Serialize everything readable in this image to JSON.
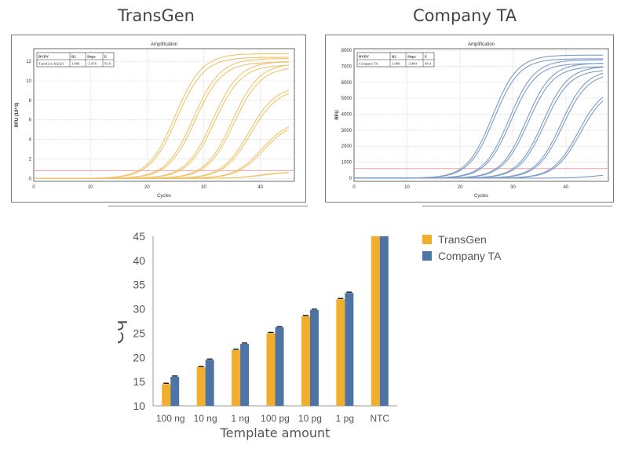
{
  "headings": {
    "left": "TransGen",
    "right": "Company TA"
  },
  "colors": {
    "transgen": "#F1AE2D",
    "company_ta": "#4E73A5",
    "transgen_curve": "#F0C46A",
    "company_curve": "#7C9CC6",
    "threshold": "#E7A3A3"
  },
  "chart_data": [
    {
      "type": "line",
      "title": "Amplification",
      "xlabel": "Cycles",
      "ylabel": "RFU (10^3)",
      "xlim": [
        0,
        46
      ],
      "ylim": [
        -0.3,
        13.3
      ],
      "xticks": [
        "0",
        "10",
        "20",
        "30",
        "40"
      ],
      "xtick_values": [
        0,
        10,
        20,
        30,
        40
      ],
      "yticks": [
        "0",
        "2",
        "4",
        "6",
        "8",
        "10",
        "12"
      ],
      "ytick_values": [
        0,
        2,
        4,
        6,
        8,
        10,
        12
      ],
      "grid": true,
      "threshold": 0.8,
      "table": {
        "headers": [
          "BVDV",
          "R2",
          "Slope",
          "E"
        ],
        "row": [
          "TransGen AQ321",
          "1.000",
          "-3.476",
          "93.9"
        ]
      },
      "curves": [
        {
          "cq": 18.5,
          "plateau": 12.8,
          "count": 2
        },
        {
          "cq": 21.8,
          "plateau": 12.3,
          "count": 2
        },
        {
          "cq": 25.3,
          "plateau": 12.0,
          "count": 2
        },
        {
          "cq": 28.8,
          "plateau": 11.8,
          "count": 2
        },
        {
          "cq": 32.3,
          "plateau": 9.5,
          "count": 2
        },
        {
          "cq": 35.8,
          "plateau": 6.0,
          "count": 2
        },
        {
          "cq": 40.0,
          "plateau": 0.7,
          "count": 2
        }
      ]
    },
    {
      "type": "line",
      "title": "Amplification",
      "xlabel": "Cycles",
      "ylabel": "RFU",
      "xlim": [
        0,
        48
      ],
      "ylim": [
        -200,
        8100
      ],
      "xticks": [
        "0",
        "10",
        "20",
        "30",
        "40"
      ],
      "xtick_values": [
        0,
        10,
        20,
        30,
        40
      ],
      "yticks": [
        "0",
        "1000",
        "2000",
        "3000",
        "4000",
        "5000",
        "6000",
        "7000",
        "8000"
      ],
      "ytick_values": [
        0,
        1000,
        2000,
        3000,
        4000,
        5000,
        6000,
        7000,
        8000
      ],
      "grid": true,
      "threshold": 600,
      "table": {
        "headers": [
          "BVDV",
          "R2",
          "Slope",
          "E"
        ],
        "row": [
          "Company TA",
          "1.000",
          "-3.484",
          "94.4"
        ]
      },
      "curves": [
        {
          "cq": 20.2,
          "plateau": 7700,
          "count": 2
        },
        {
          "cq": 23.5,
          "plateau": 7400,
          "count": 2
        },
        {
          "cq": 26.8,
          "plateau": 7200,
          "count": 2
        },
        {
          "cq": 30.0,
          "plateau": 7000,
          "count": 2
        },
        {
          "cq": 33.5,
          "plateau": 6800,
          "count": 2
        },
        {
          "cq": 37.2,
          "plateau": 5800,
          "count": 2
        },
        {
          "cq": 46.0,
          "plateau": 300,
          "count": 1
        }
      ]
    },
    {
      "type": "bar",
      "categories": [
        "100 ng",
        "10 ng",
        "1 ng",
        "100 pg",
        "10 pg",
        "1 pg",
        "NTC"
      ],
      "series": [
        {
          "name": "TransGen",
          "values": [
            14.5,
            18.0,
            21.5,
            25.0,
            28.5,
            32.0,
            45.0
          ]
        },
        {
          "name": "Company TA",
          "values": [
            16.0,
            19.5,
            22.8,
            26.2,
            29.8,
            33.3,
            45.0
          ]
        }
      ],
      "xlabel": "Template amount",
      "ylabel": "Cq",
      "ylim": [
        10,
        45
      ],
      "yticks": [
        "10",
        "15",
        "20",
        "25",
        "30",
        "35",
        "40",
        "45"
      ],
      "ytick_values": [
        10,
        15,
        20,
        25,
        30,
        35,
        40,
        45
      ],
      "legend": "top-right",
      "grid": false
    }
  ]
}
